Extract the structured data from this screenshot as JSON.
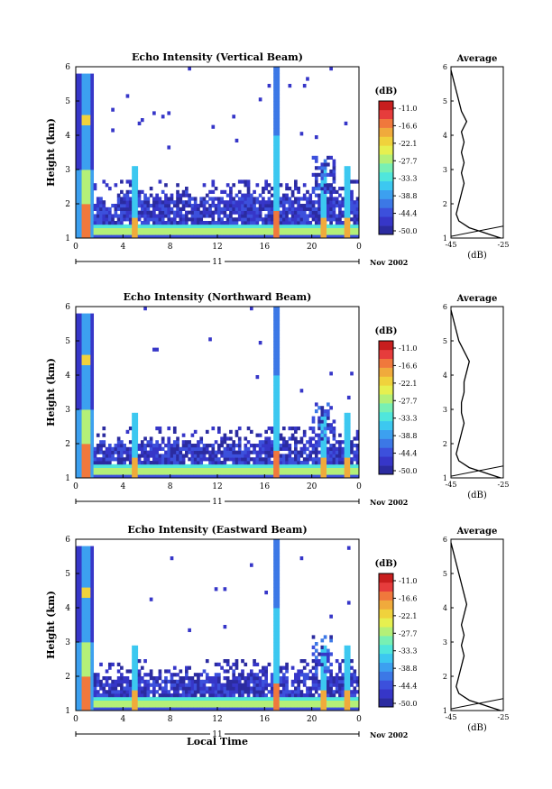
{
  "shared": {
    "time_ticks": [
      0,
      4,
      8,
      12,
      16,
      20,
      0
    ],
    "height_ticks": [
      1,
      2,
      3,
      4,
      5,
      6
    ],
    "day_label": "11",
    "date_suffix": "Nov 2002",
    "ylabel": "Height (km)",
    "xlabel": "Local Time",
    "colorbar_unit": "(dB)",
    "colorbar_values": [
      "-11.0",
      "-16.6",
      "-22.1",
      "-27.7",
      "-33.3",
      "-38.8",
      "-44.4",
      "-50.0"
    ],
    "avg_title": "Average",
    "avg_xlabel": "(dB)"
  },
  "colors": {
    "scale": [
      "#2b2ba0",
      "#3636c8",
      "#3c50dc",
      "#3c78e6",
      "#3ca0f0",
      "#3cc8f0",
      "#50e6dc",
      "#78f0b4",
      "#b4f078",
      "#e6f050",
      "#f0d23c",
      "#f0aa3c",
      "#f0783c",
      "#e63c3c",
      "#c81e1e"
    ]
  },
  "chart_data": [
    {
      "type": "heatmap",
      "title": "Echo Intensity (Vertical Beam)",
      "xlim": [
        0,
        24
      ],
      "ylim": [
        1,
        6
      ],
      "features": {
        "surface_layer_top_km": 1.4,
        "clutter_layer_top_km": 2.2,
        "spikes_hours": [
          1,
          5,
          17,
          21,
          23
        ]
      },
      "average_profile": {
        "xticks": [
          -45,
          -25
        ],
        "height": [
          1.0,
          1.1,
          1.2,
          1.3,
          1.5,
          1.7,
          2.0,
          2.3,
          2.6,
          2.9,
          3.2,
          3.5,
          3.8,
          4.1,
          4.4,
          4.7,
          5.0,
          5.3,
          5.6,
          5.9
        ],
        "value": [
          -26,
          -30,
          -34,
          -38,
          -42,
          -43,
          -42,
          -41,
          -40,
          -41,
          -40,
          -41,
          -40,
          -41,
          -39,
          -41,
          -42,
          -43,
          -44,
          -45
        ]
      }
    },
    {
      "type": "heatmap",
      "title": "Echo Intensity (Northward Beam)",
      "xlim": [
        0,
        24
      ],
      "ylim": [
        1,
        6
      ],
      "features": {
        "surface_layer_top_km": 1.4,
        "clutter_layer_top_km": 2.0,
        "spikes_hours": [
          1,
          5,
          17,
          21,
          23
        ]
      },
      "average_profile": {
        "xticks": [
          -45,
          -25
        ],
        "height": [
          1.0,
          1.1,
          1.2,
          1.3,
          1.5,
          1.7,
          2.0,
          2.3,
          2.6,
          2.9,
          3.2,
          3.5,
          3.8,
          4.1,
          4.4,
          4.7,
          5.0,
          5.3,
          5.6,
          5.9
        ],
        "value": [
          -26,
          -30,
          -34,
          -38,
          -42,
          -43,
          -42,
          -41,
          -40,
          -41,
          -41,
          -40,
          -40,
          -39,
          -38,
          -40,
          -42,
          -43,
          -44,
          -45
        ]
      }
    },
    {
      "type": "heatmap",
      "title": "Echo Intensity (Eastward Beam)",
      "xlim": [
        0,
        24
      ],
      "ylim": [
        1,
        6
      ],
      "features": {
        "surface_layer_top_km": 1.4,
        "clutter_layer_top_km": 2.0,
        "spikes_hours": [
          1,
          5,
          17,
          21,
          23
        ]
      },
      "average_profile": {
        "xticks": [
          -45,
          -25
        ],
        "height": [
          1.0,
          1.1,
          1.2,
          1.3,
          1.5,
          1.7,
          2.0,
          2.3,
          2.6,
          2.9,
          3.2,
          3.5,
          3.8,
          4.1,
          4.4,
          4.7,
          5.0,
          5.3,
          5.6,
          5.9
        ],
        "value": [
          -26,
          -30,
          -34,
          -38,
          -42,
          -43,
          -42,
          -41,
          -40,
          -41,
          -40,
          -41,
          -40,
          -39,
          -40,
          -41,
          -42,
          -43,
          -44,
          -45
        ]
      }
    }
  ]
}
